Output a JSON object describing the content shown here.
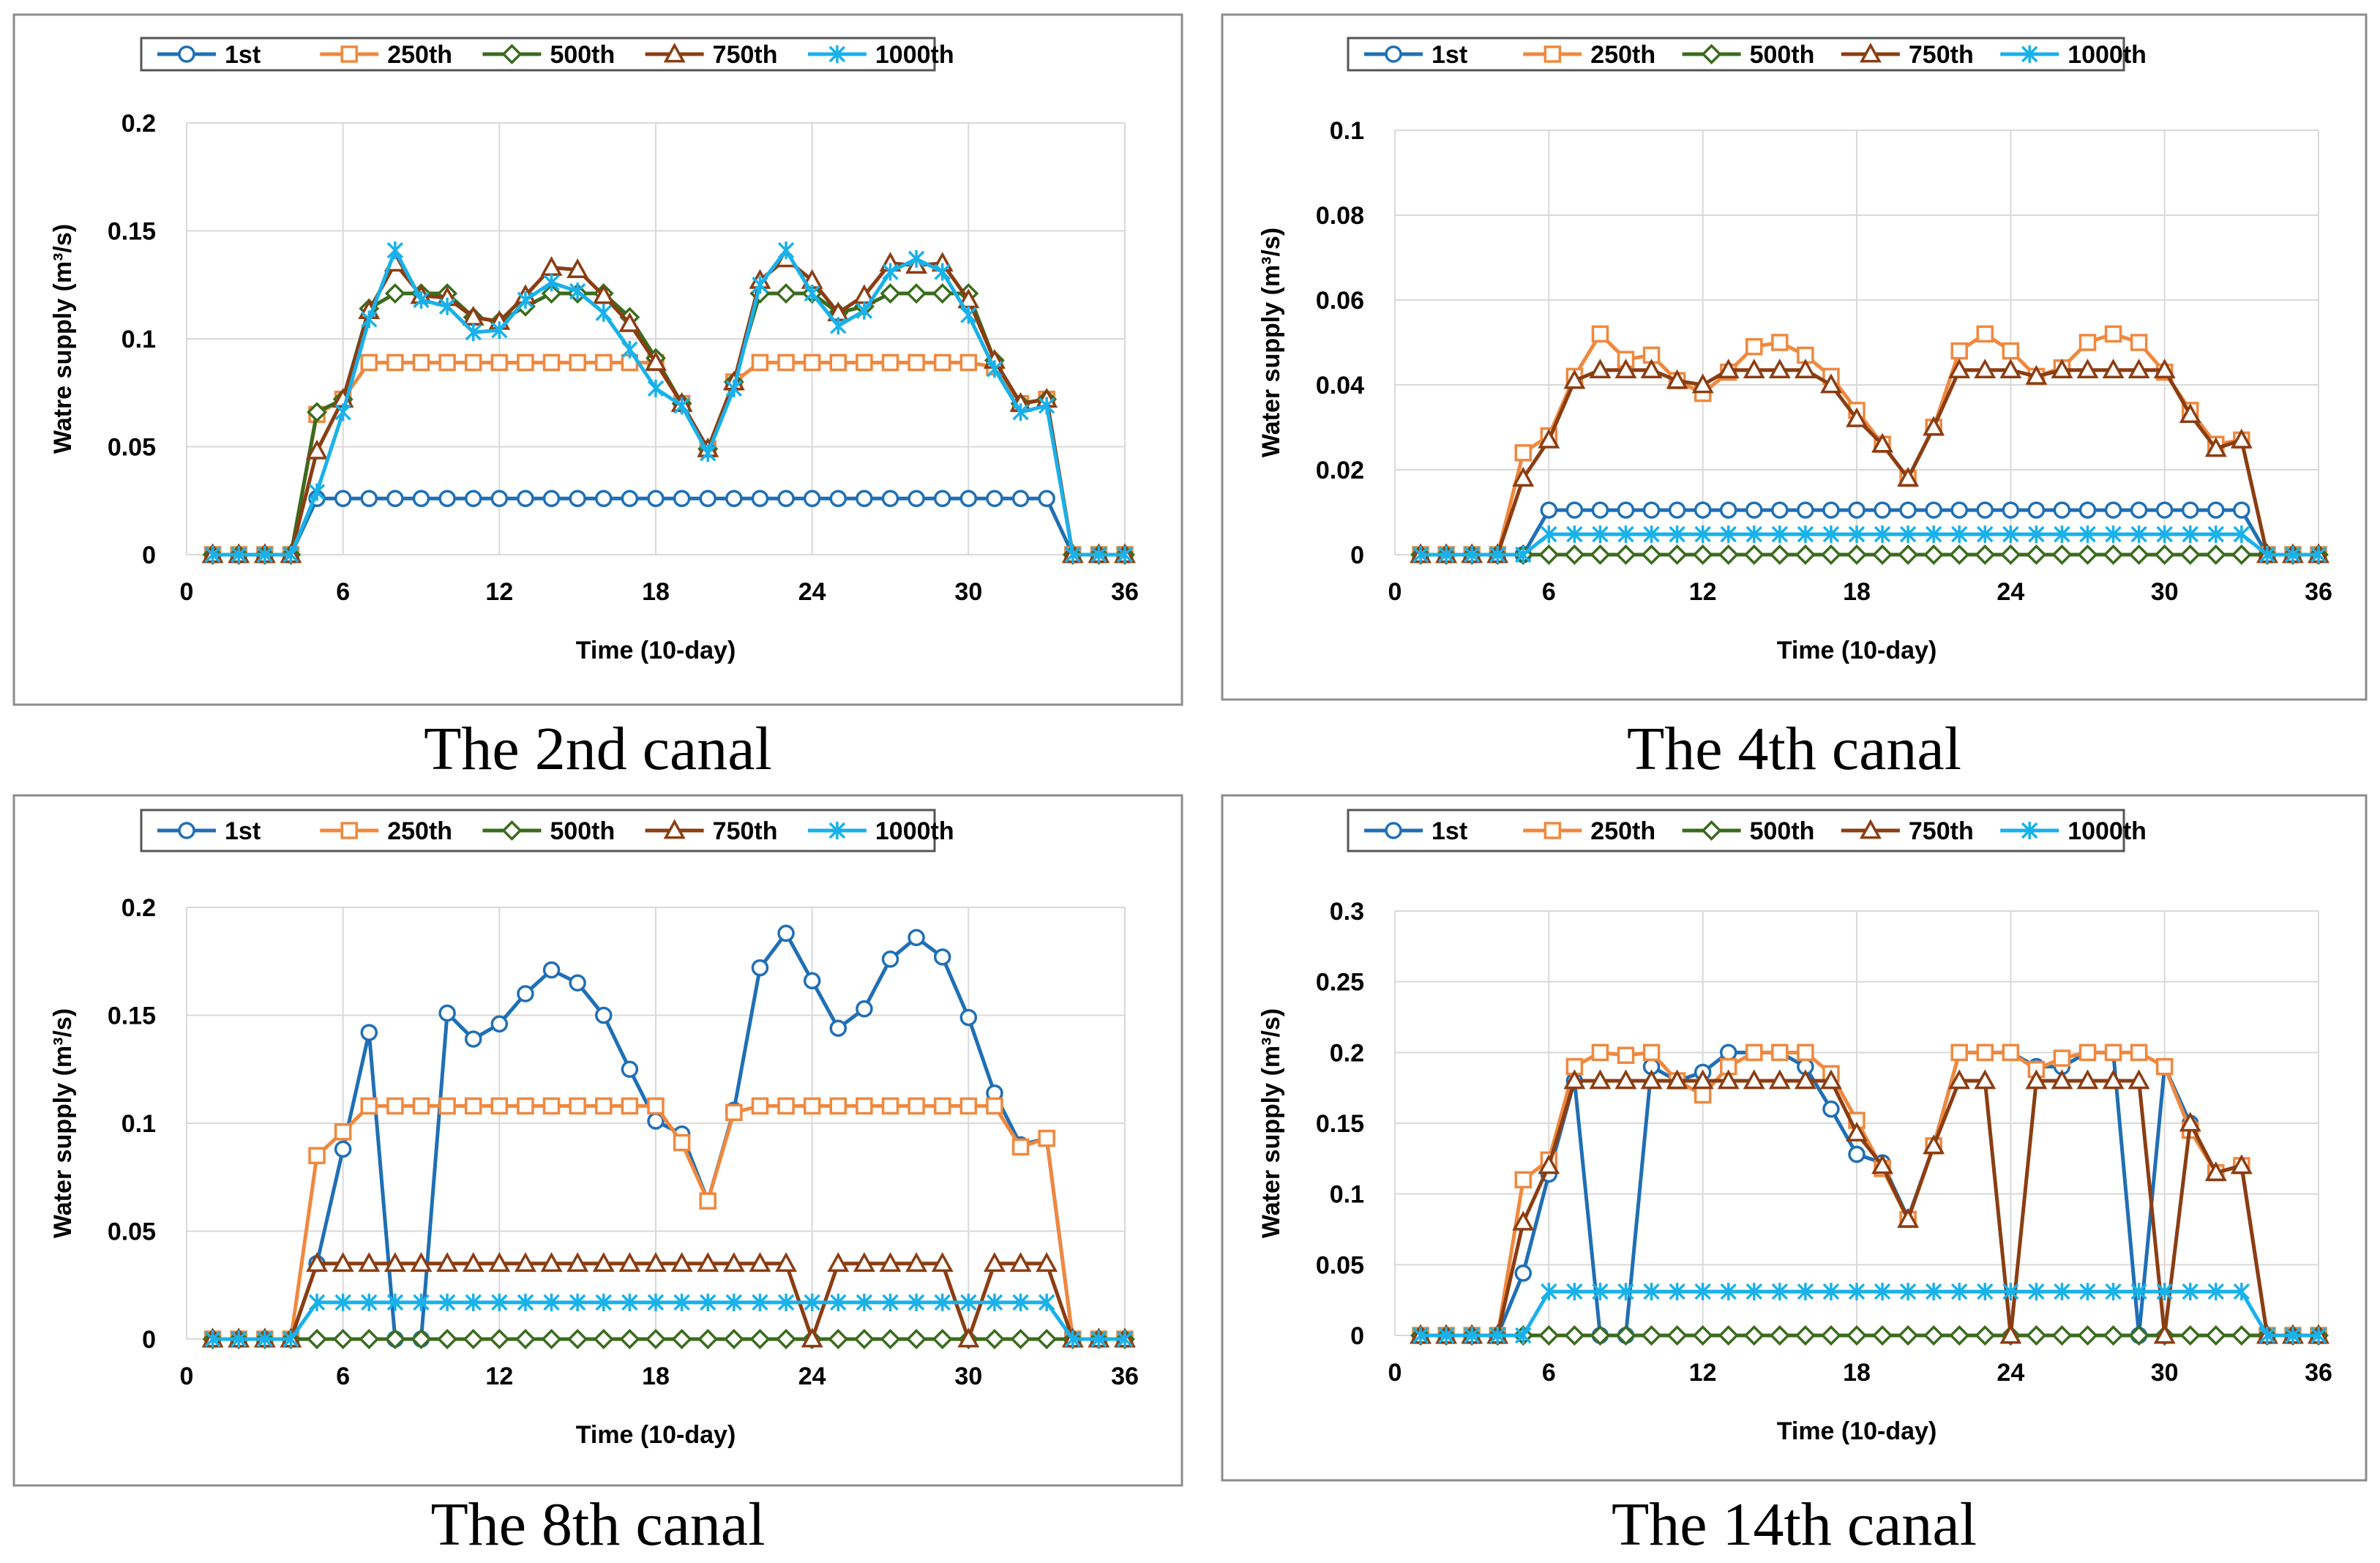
{
  "legend_labels": [
    "1st",
    "250th",
    "500th",
    "750th",
    "1000th"
  ],
  "colors": {
    "s1st": "#1f6fb5",
    "s250th": "#f0883e",
    "s500th": "#3b6b1e",
    "s750th": "#8b3d12",
    "s1000th": "#19b1ea",
    "grid": "#d9d9d9",
    "axis_text": "#000000"
  },
  "markers": [
    "circle",
    "square",
    "diamond",
    "triangle",
    "asterisk"
  ],
  "captions": [
    "The 2nd canal",
    "The 4th canal",
    "The 8th canal",
    "The 14th canal"
  ],
  "chart_data": [
    {
      "type": "line",
      "title": "",
      "xlabel": "Time (10-day)",
      "ylabel": "Watre supply (m³/s)",
      "xlim": [
        0,
        36
      ],
      "xticks": [
        0,
        6,
        12,
        18,
        24,
        30,
        36
      ],
      "ylim": [
        0,
        0.2
      ],
      "yticks": [
        "0",
        "0.05",
        "0.1",
        "0.15",
        "0.2"
      ],
      "x": [
        1,
        2,
        3,
        4,
        5,
        6,
        7,
        8,
        9,
        10,
        11,
        12,
        13,
        14,
        15,
        16,
        17,
        18,
        19,
        20,
        21,
        22,
        23,
        24,
        25,
        26,
        27,
        28,
        29,
        30,
        31,
        32,
        33,
        34,
        35,
        36
      ],
      "series": [
        {
          "name": "1st",
          "values": [
            0,
            0,
            0,
            0,
            0.026,
            0.026,
            0.026,
            0.026,
            0.026,
            0.026,
            0.026,
            0.026,
            0.026,
            0.026,
            0.026,
            0.026,
            0.026,
            0.026,
            0.026,
            0.026,
            0.026,
            0.026,
            0.026,
            0.026,
            0.026,
            0.026,
            0.026,
            0.026,
            0.026,
            0.026,
            0.026,
            0.026,
            0.026,
            0,
            0,
            0
          ]
        },
        {
          "name": "250th",
          "values": [
            0,
            0,
            0,
            0,
            0.065,
            0.072,
            0.089,
            0.089,
            0.089,
            0.089,
            0.089,
            0.089,
            0.089,
            0.089,
            0.089,
            0.089,
            0.089,
            0.089,
            0.07,
            0.049,
            0.08,
            0.089,
            0.089,
            0.089,
            0.089,
            0.089,
            0.089,
            0.089,
            0.089,
            0.089,
            0.087,
            0.07,
            0.072,
            0,
            0,
            0
          ]
        },
        {
          "name": "500th",
          "values": [
            0,
            0,
            0,
            0,
            0.066,
            0.072,
            0.114,
            0.121,
            0.121,
            0.121,
            0.11,
            0.108,
            0.115,
            0.121,
            0.121,
            0.121,
            0.11,
            0.091,
            0.07,
            0.049,
            0.08,
            0.121,
            0.121,
            0.121,
            0.112,
            0.115,
            0.121,
            0.121,
            0.121,
            0.121,
            0.09,
            0.07,
            0.072,
            0,
            0,
            0
          ]
        },
        {
          "name": "750th",
          "values": [
            0,
            0,
            0,
            0,
            0.048,
            0.072,
            0.113,
            0.135,
            0.12,
            0.119,
            0.11,
            0.108,
            0.12,
            0.133,
            0.132,
            0.12,
            0.107,
            0.089,
            0.07,
            0.049,
            0.08,
            0.127,
            0.137,
            0.127,
            0.112,
            0.12,
            0.135,
            0.134,
            0.135,
            0.118,
            0.09,
            0.07,
            0.072,
            0,
            0,
            0
          ]
        },
        {
          "name": "1000th",
          "values": [
            0,
            0,
            0,
            0,
            0.029,
            0.066,
            0.109,
            0.141,
            0.118,
            0.115,
            0.103,
            0.104,
            0.118,
            0.126,
            0.122,
            0.112,
            0.095,
            0.077,
            0.069,
            0.047,
            0.077,
            0.125,
            0.141,
            0.121,
            0.106,
            0.113,
            0.131,
            0.137,
            0.131,
            0.111,
            0.086,
            0.066,
            0.069,
            0,
            0,
            0
          ]
        }
      ]
    },
    {
      "type": "line",
      "title": "",
      "xlabel": "Time (10-day)",
      "ylabel": "Water supply (m³/s)",
      "xlim": [
        0,
        36
      ],
      "xticks": [
        0,
        6,
        12,
        18,
        24,
        30,
        36
      ],
      "ylim": [
        0,
        0.1
      ],
      "yticks": [
        "0",
        "0.02",
        "0.04",
        "0.06",
        "0.08",
        "0.1"
      ],
      "x": [
        1,
        2,
        3,
        4,
        5,
        6,
        7,
        8,
        9,
        10,
        11,
        12,
        13,
        14,
        15,
        16,
        17,
        18,
        19,
        20,
        21,
        22,
        23,
        24,
        25,
        26,
        27,
        28,
        29,
        30,
        31,
        32,
        33,
        34,
        35,
        36
      ],
      "series": [
        {
          "name": "1st",
          "values": [
            0,
            0,
            0,
            0,
            0,
            0.0105,
            0.0105,
            0.0105,
            0.0105,
            0.0105,
            0.0105,
            0.0105,
            0.0105,
            0.0105,
            0.0105,
            0.0105,
            0.0105,
            0.0105,
            0.0105,
            0.0105,
            0.0105,
            0.0105,
            0.0105,
            0.0105,
            0.0105,
            0.0105,
            0.0105,
            0.0105,
            0.0105,
            0.0105,
            0.0105,
            0.0105,
            0.0105,
            0,
            0,
            0
          ]
        },
        {
          "name": "250th",
          "values": [
            0,
            0,
            0,
            0,
            0.024,
            0.028,
            0.042,
            0.052,
            0.046,
            0.047,
            0.041,
            0.038,
            0.043,
            0.049,
            0.05,
            0.047,
            0.042,
            0.034,
            0.026,
            0.018,
            0.03,
            0.048,
            0.052,
            0.048,
            0.042,
            0.044,
            0.05,
            0.052,
            0.05,
            0.043,
            0.034,
            0.026,
            0.027,
            0,
            0,
            0
          ]
        },
        {
          "name": "500th",
          "values": [
            0,
            0,
            0,
            0,
            0,
            0,
            0,
            0,
            0,
            0,
            0,
            0,
            0,
            0,
            0,
            0,
            0,
            0,
            0,
            0,
            0,
            0,
            0,
            0,
            0,
            0,
            0,
            0,
            0,
            0,
            0,
            0,
            0,
            0,
            0,
            0
          ]
        },
        {
          "name": "750th",
          "values": [
            0,
            0,
            0,
            0,
            0.018,
            0.027,
            0.041,
            0.0435,
            0.0435,
            0.0435,
            0.041,
            0.04,
            0.0435,
            0.0435,
            0.0435,
            0.0435,
            0.04,
            0.032,
            0.026,
            0.018,
            0.03,
            0.0435,
            0.0435,
            0.0435,
            0.042,
            0.0435,
            0.0435,
            0.0435,
            0.0435,
            0.0435,
            0.033,
            0.025,
            0.027,
            0,
            0,
            0
          ]
        },
        {
          "name": "1000th",
          "values": [
            0,
            0,
            0,
            0,
            0,
            0.0048,
            0.0048,
            0.0048,
            0.0048,
            0.0048,
            0.0048,
            0.0048,
            0.0048,
            0.0048,
            0.0048,
            0.0048,
            0.0048,
            0.0048,
            0.0048,
            0.0048,
            0.0048,
            0.0048,
            0.0048,
            0.0048,
            0.0048,
            0.0048,
            0.0048,
            0.0048,
            0.0048,
            0.0048,
            0.0048,
            0.0048,
            0.0048,
            0,
            0,
            0
          ]
        }
      ]
    },
    {
      "type": "line",
      "title": "",
      "xlabel": "Time (10-day)",
      "ylabel": "Water supply (m³/s)",
      "xlim": [
        0,
        36
      ],
      "xticks": [
        0,
        6,
        12,
        18,
        24,
        30,
        36
      ],
      "ylim": [
        0,
        0.2
      ],
      "yticks": [
        "0",
        "0.05",
        "0.1",
        "0.15",
        "0.2"
      ],
      "x": [
        1,
        2,
        3,
        4,
        5,
        6,
        7,
        8,
        9,
        10,
        11,
        12,
        13,
        14,
        15,
        16,
        17,
        18,
        19,
        20,
        21,
        22,
        23,
        24,
        25,
        26,
        27,
        28,
        29,
        30,
        31,
        32,
        33,
        34,
        35,
        36
      ],
      "series": [
        {
          "name": "1st",
          "values": [
            0,
            0,
            0,
            0,
            0.035,
            0.088,
            0.142,
            0,
            0,
            0.151,
            0.139,
            0.146,
            0.16,
            0.171,
            0.165,
            0.15,
            0.125,
            0.101,
            0.095,
            0.064,
            0.106,
            0.172,
            0.188,
            0.166,
            0.144,
            0.153,
            0.176,
            0.186,
            0.177,
            0.149,
            0.114,
            0.09,
            0.093,
            0,
            0,
            0
          ]
        },
        {
          "name": "250th",
          "values": [
            0,
            0,
            0,
            0,
            0.085,
            0.096,
            0.108,
            0.108,
            0.108,
            0.108,
            0.108,
            0.108,
            0.108,
            0.108,
            0.108,
            0.108,
            0.108,
            0.108,
            0.091,
            0.064,
            0.105,
            0.108,
            0.108,
            0.108,
            0.108,
            0.108,
            0.108,
            0.108,
            0.108,
            0.108,
            0.108,
            0.089,
            0.093,
            0,
            0,
            0
          ]
        },
        {
          "name": "500th",
          "values": [
            0,
            0,
            0,
            0,
            0,
            0,
            0,
            0,
            0,
            0,
            0,
            0,
            0,
            0,
            0,
            0,
            0,
            0,
            0,
            0,
            0,
            0,
            0,
            0,
            0,
            0,
            0,
            0,
            0,
            0,
            0,
            0,
            0,
            0,
            0,
            0
          ]
        },
        {
          "name": "750th",
          "values": [
            0,
            0,
            0,
            0,
            0.035,
            0.035,
            0.035,
            0.035,
            0.035,
            0.035,
            0.035,
            0.035,
            0.035,
            0.035,
            0.035,
            0.035,
            0.035,
            0.035,
            0.035,
            0.035,
            0.035,
            0.035,
            0.035,
            0,
            0.035,
            0.035,
            0.035,
            0.035,
            0.035,
            0,
            0.035,
            0.035,
            0.035,
            0,
            0,
            0
          ]
        },
        {
          "name": "1000th",
          "values": [
            0,
            0,
            0,
            0,
            0.017,
            0.017,
            0.017,
            0.017,
            0.017,
            0.017,
            0.017,
            0.017,
            0.017,
            0.017,
            0.017,
            0.017,
            0.017,
            0.017,
            0.017,
            0.017,
            0.017,
            0.017,
            0.017,
            0.017,
            0.017,
            0.017,
            0.017,
            0.017,
            0.017,
            0.017,
            0.017,
            0.017,
            0.017,
            0,
            0,
            0
          ]
        }
      ]
    },
    {
      "type": "line",
      "title": "",
      "xlabel": "Time (10-day)",
      "ylabel": "Water supply (m³/s)",
      "xlim": [
        0,
        36
      ],
      "xticks": [
        0,
        6,
        12,
        18,
        24,
        30,
        36
      ],
      "ylim": [
        0,
        0.3
      ],
      "yticks": [
        "0",
        "0.05",
        "0.1",
        "0.15",
        "0.2",
        "0.25",
        "0.3"
      ],
      "x": [
        1,
        2,
        3,
        4,
        5,
        6,
        7,
        8,
        9,
        10,
        11,
        12,
        13,
        14,
        15,
        16,
        17,
        18,
        19,
        20,
        21,
        22,
        23,
        24,
        25,
        26,
        27,
        28,
        29,
        30,
        31,
        32,
        33,
        34,
        35,
        36
      ],
      "series": [
        {
          "name": "1st",
          "values": [
            0,
            0,
            0,
            0,
            0.044,
            0.114,
            0.18,
            0,
            0,
            0.19,
            0.18,
            0.186,
            0.2,
            0.2,
            0.2,
            0.19,
            0.16,
            0.128,
            0.122,
            0.083,
            0.134,
            0.2,
            0.2,
            0.2,
            0.19,
            0.19,
            0.2,
            0.2,
            0,
            0.19,
            0.15,
            0.115,
            0.12,
            0,
            0,
            0
          ]
        },
        {
          "name": "250th",
          "values": [
            0,
            0,
            0,
            0,
            0.11,
            0.124,
            0.19,
            0.2,
            0.198,
            0.2,
            0.18,
            0.17,
            0.19,
            0.2,
            0.2,
            0.2,
            0.185,
            0.152,
            0.118,
            0.082,
            0.134,
            0.2,
            0.2,
            0.2,
            0.188,
            0.196,
            0.2,
            0.2,
            0.2,
            0.19,
            0.145,
            0.115,
            0.12,
            0,
            0,
            0
          ]
        },
        {
          "name": "500th",
          "values": [
            0,
            0,
            0,
            0,
            0,
            0,
            0,
            0,
            0,
            0,
            0,
            0,
            0,
            0,
            0,
            0,
            0,
            0,
            0,
            0,
            0,
            0,
            0,
            0,
            0,
            0,
            0,
            0,
            0,
            0,
            0,
            0,
            0,
            0,
            0,
            0
          ]
        },
        {
          "name": "750th",
          "values": [
            0,
            0,
            0,
            0,
            0.08,
            0.12,
            0.18,
            0.18,
            0.18,
            0.18,
            0.18,
            0.18,
            0.18,
            0.18,
            0.18,
            0.18,
            0.18,
            0.143,
            0.12,
            0.082,
            0.134,
            0.18,
            0.18,
            0,
            0.18,
            0.18,
            0.18,
            0.18,
            0.18,
            0,
            0.15,
            0.115,
            0.12,
            0,
            0,
            0
          ]
        },
        {
          "name": "1000th",
          "values": [
            0,
            0,
            0,
            0,
            0,
            0.031,
            0.031,
            0.031,
            0.031,
            0.031,
            0.031,
            0.031,
            0.031,
            0.031,
            0.031,
            0.031,
            0.031,
            0.031,
            0.031,
            0.031,
            0.031,
            0.031,
            0.031,
            0.031,
            0.031,
            0.031,
            0.031,
            0.031,
            0.031,
            0.031,
            0.031,
            0.031,
            0.031,
            0,
            0,
            0
          ]
        }
      ]
    }
  ]
}
